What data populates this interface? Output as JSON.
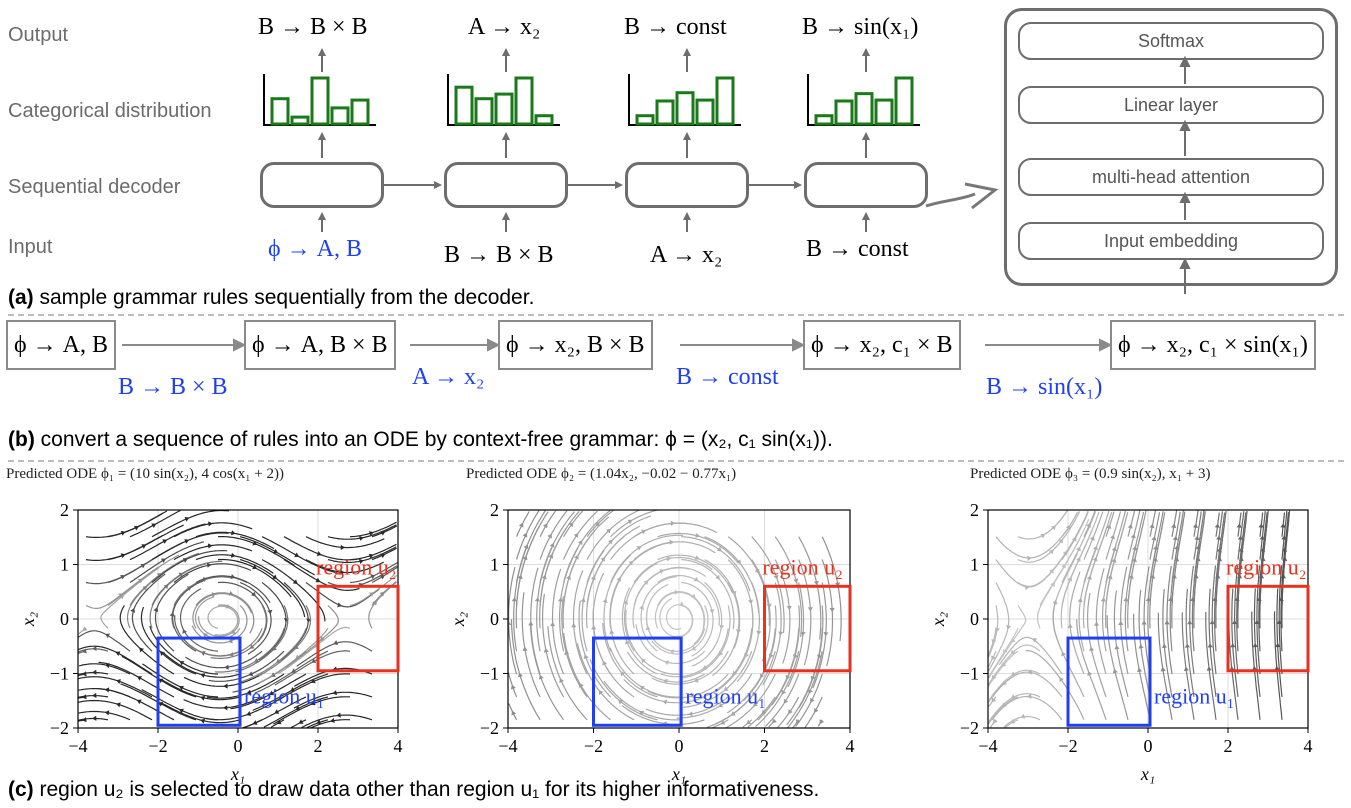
{
  "row_labels": {
    "output": "Output",
    "categorical": "Categorical distribution",
    "decoder": "Sequential decoder",
    "input": "Input"
  },
  "outputs": [
    "B → B × B",
    "A → x₂",
    "B → const",
    "B → sin(x₁)"
  ],
  "inputs": [
    "ϕ → A, B",
    "B → B × B",
    "A → x₂",
    "B → const"
  ],
  "distributions": [
    [
      0.55,
      0.15,
      1.0,
      0.35,
      0.52
    ],
    [
      0.8,
      0.55,
      0.65,
      1.0,
      0.18
    ],
    [
      0.18,
      0.5,
      0.68,
      0.52,
      1.0
    ],
    [
      0.18,
      0.5,
      0.66,
      0.52,
      1.0
    ]
  ],
  "transformer_blocks": [
    "Softmax",
    "Linear layer",
    "multi-head attention",
    "Input embedding"
  ],
  "caption_a": {
    "tag": "(a)",
    "text": " sample grammar rules sequentially from the decoder."
  },
  "ode_boxes": [
    "ϕ → A, B",
    "ϕ → A, B × B",
    "ϕ → x₂, B × B",
    "ϕ → x₂, c₁ × B",
    "ϕ → x₂, c₁ × sin(x₁)"
  ],
  "ode_rules": [
    "B → B × B",
    "A → x₂",
    "B → const",
    "B → sin(x₁)"
  ],
  "caption_b": {
    "tag": "(b)",
    "text": " convert a sequence of rules into an ODE by context-free grammar: ϕ = (x₂, c₁ sin(x₁))."
  },
  "plots": [
    {
      "title": "Predicted ODE ϕ₁ = (10 sin(x₂), 4 cos(x₁ + 2))",
      "type": "saddle-center"
    },
    {
      "title": "Predicted ODE ϕ₂ = (1.04x₂, −0.02 − 0.77x₁)",
      "type": "center"
    },
    {
      "title": "Predicted ODE ϕ₃ = (0.9 sin(x₂), x₁ + 3)",
      "type": "saddle"
    }
  ],
  "axes": {
    "xlabel": "x₁",
    "ylabel": "x₂",
    "xticks": [
      "−4",
      "−2",
      "0",
      "2",
      "4"
    ],
    "yticks": [
      "2",
      "1",
      "0",
      "−1",
      "−2"
    ],
    "xlim": [
      -4,
      4
    ],
    "ylim": [
      -2,
      2
    ]
  },
  "region_labels": {
    "u1": "region u₁",
    "u2": "region u₂"
  },
  "colors": {
    "blue": "#1f3ff5",
    "red": "#e8321f",
    "green": "#1a7a1a",
    "box": "#6d6d6d"
  },
  "caption_c": {
    "tag": "(c)",
    "text": " region u₂ is selected to draw data other than region u₁ for its higher informativeness."
  }
}
